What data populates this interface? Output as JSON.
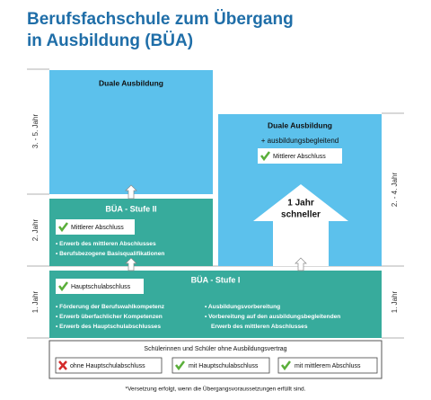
{
  "header": {
    "title_lines": [
      "Berufsfachschule zum Übergang",
      "in Ausbildung (BÜA)"
    ]
  },
  "left_axis": [
    "3. - 5. Jahr",
    "2. Jahr",
    "1. Jahr"
  ],
  "right_axis": [
    "2. - 4. Jahr",
    "1. Jahr"
  ],
  "duale_left": {
    "title": "Duale Ausbildung"
  },
  "duale_right": {
    "title": "Duale Ausbildung",
    "subtitle": "+ ausbildungsbegleitend",
    "badge": "Mittlerer Abschluss"
  },
  "arrow_text": [
    "1 Jahr",
    "schneller"
  ],
  "stufe2": {
    "title": "BÜA - Stufe II",
    "badge": "Mittlerer Abschluss",
    "bullets": [
      "Erwerb des mittleren Abschlusses",
      "Berufsbezogene Basisqualifikationen"
    ]
  },
  "stufe1": {
    "title": "BÜA - Stufe I",
    "badge": "Hauptschulabschluss",
    "bullets_left": [
      "Förderung der Berufswahlkompetenz",
      "Erwerb überfachlicher Kompetenzen",
      "Erwerb des Hauptschulabschlusses"
    ],
    "bullets_right": [
      "Ausbildungsvorbereitung",
      "Vorbereitung auf den ausbildungsbegleitenden",
      "Erwerb des mittleren Abschlusses"
    ]
  },
  "entry": {
    "title": "Schülerinnen und Schüler ohne Ausbildungsvertrag",
    "options": [
      "ohne Hauptschulabschluss",
      "mit Hauptschulabschluss",
      "mit mittlerem Abschluss"
    ]
  },
  "footnote": "*Versetzung erfolgt, wenn die Übergangsvoraussetzungen erfüllt sind."
}
